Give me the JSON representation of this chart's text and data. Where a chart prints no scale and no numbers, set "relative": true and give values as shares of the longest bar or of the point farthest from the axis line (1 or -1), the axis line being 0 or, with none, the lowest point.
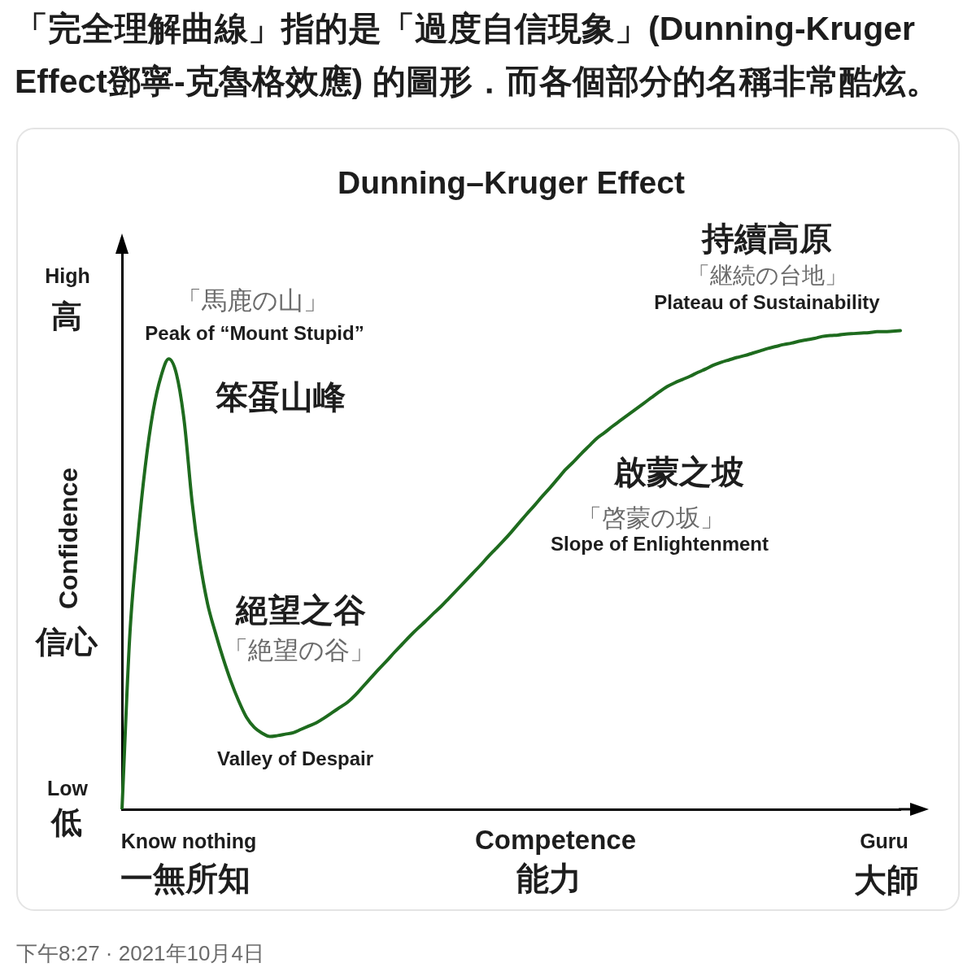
{
  "chart_data": {
    "type": "line",
    "title": "Dunning–Kruger Effect",
    "xlabel": "Competence\n能力",
    "ylabel": "Confidence\n信心",
    "relative": true,
    "marker": "none",
    "line_style": "solid",
    "color": "#1e6b1e",
    "categories": [
      null,
      null,
      null,
      null,
      null,
      null,
      null,
      null,
      null,
      null,
      null,
      null,
      null,
      null,
      null,
      null,
      null,
      null,
      null,
      null,
      null,
      null,
      null,
      null,
      null,
      null,
      null,
      null,
      null,
      null,
      null,
      null,
      null,
      null,
      null,
      null,
      null,
      null,
      null,
      null,
      null,
      null,
      null,
      null,
      null,
      null,
      null,
      null,
      null,
      null,
      null,
      null,
      null,
      null,
      null,
      null,
      null,
      null,
      null,
      null,
      null,
      null,
      null,
      null,
      null,
      null,
      null,
      null,
      null,
      null,
      null,
      null,
      null,
      null,
      null,
      null,
      null,
      null,
      null,
      null,
      null,
      null,
      null,
      null,
      null,
      null,
      null,
      null,
      null,
      null,
      null,
      null,
      null,
      null,
      null,
      null,
      null,
      null,
      null,
      null,
      null
    ],
    "values": [
      0,
      0.363,
      0.562,
      0.718,
      0.832,
      0.904,
      0.941,
      0.909,
      0.81,
      0.643,
      0.519,
      0.429,
      0.369,
      0.315,
      0.267,
      0.226,
      0.192,
      0.171,
      0.159,
      0.152,
      0.154,
      0.157,
      0.16,
      0.167,
      0.174,
      0.181,
      0.191,
      0.202,
      0.213,
      0.224,
      0.239,
      0.257,
      0.275,
      0.293,
      0.31,
      0.328,
      0.345,
      0.362,
      0.378,
      0.393,
      0.409,
      0.424,
      0.441,
      0.458,
      0.475,
      0.492,
      0.509,
      0.527,
      0.544,
      0.561,
      0.579,
      0.598,
      0.617,
      0.635,
      0.654,
      0.672,
      0.691,
      0.71,
      0.726,
      0.743,
      0.759,
      0.775,
      0.787,
      0.8,
      0.812,
      0.824,
      0.836,
      0.848,
      0.86,
      0.872,
      0.883,
      0.891,
      0.898,
      0.905,
      0.913,
      0.92,
      0.928,
      0.934,
      0.939,
      0.944,
      0.948,
      0.953,
      0.958,
      0.963,
      0.967,
      0.971,
      0.974,
      0.978,
      0.981,
      0.984,
      0.988,
      0.99,
      0.991,
      0.993,
      0.994,
      0.995,
      0.996,
      0.998,
      0.998,
      0.999,
      1
    ],
    "annotations": [
      "「完全理解曲線」指的是「過度自信現象」(Dunning-Kruger Effect鄧寧-克魯格效應) 的圖形．而各個部分的名稱非常酷炫。",
      "High",
      "高",
      "Low",
      "低",
      "Know nothing",
      "一無所知",
      "Guru",
      "大師",
      "「馬鹿の山」",
      "Peak of “Mount Stupid”",
      "笨蛋山峰",
      "絕望之谷",
      "「絶望の谷」",
      "Valley of Despair",
      "啟蒙之坡",
      "「啓蒙の坂」",
      "Slope of Enlightenment",
      "持續高原",
      "「継続の台地」",
      "Plateau of Sustainability",
      "下午8:27 · 2021年10月4日"
    ]
  }
}
